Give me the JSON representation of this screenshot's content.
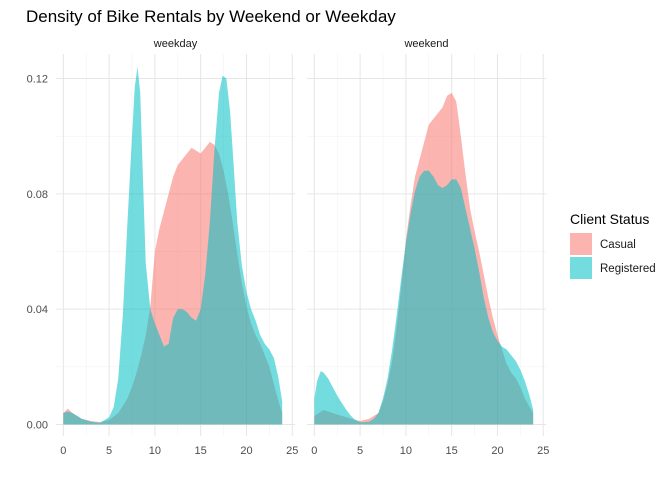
{
  "chart_data": {
    "type": "area",
    "title": "Density of Bike Rentals by Weekend or Weekday",
    "xlabel": "",
    "ylabel": "",
    "xlim": [
      -0.8,
      25.3
    ],
    "ylim": [
      -0.004,
      0.1285
    ],
    "x_ticks": [
      0,
      5,
      10,
      15,
      20,
      25
    ],
    "y_ticks": [
      0.0,
      0.04,
      0.08,
      0.12
    ],
    "y_tick_labels": [
      "0.00",
      "0.04",
      "0.08",
      "0.12"
    ],
    "grid": true,
    "legend": {
      "title": "Client Status",
      "position": "right",
      "entries": [
        {
          "name": "Casual",
          "color": "#F8766D"
        },
        {
          "name": "Registered",
          "color": "#00BFC4"
        }
      ]
    },
    "facets": [
      {
        "label": "weekday",
        "series": [
          {
            "name": "Casual",
            "color": "#F8766D",
            "x": [
              0,
              0.5,
              1,
              1.5,
              2,
              3,
              4,
              5,
              6,
              7,
              7.5,
              8,
              8.5,
              9,
              9.5,
              10,
              10.5,
              11,
              11.5,
              12,
              12.5,
              13,
              13.5,
              14,
              14.5,
              15,
              15.5,
              16,
              16.5,
              17,
              17.5,
              18,
              18.5,
              19,
              19.5,
              20,
              20.5,
              21,
              21.5,
              22,
              22.5,
              23,
              23.5,
              23.9
            ],
            "y": [
              0.004,
              0.0055,
              0.004,
              0.003,
              0.002,
              0.0012,
              0.0008,
              0.0015,
              0.004,
              0.009,
              0.013,
              0.018,
              0.024,
              0.031,
              0.041,
              0.06,
              0.068,
              0.074,
              0.08,
              0.086,
              0.09,
              0.092,
              0.094,
              0.096,
              0.095,
              0.094,
              0.096,
              0.098,
              0.097,
              0.094,
              0.088,
              0.08,
              0.07,
              0.059,
              0.049,
              0.041,
              0.035,
              0.031,
              0.028,
              0.024,
              0.02,
              0.014,
              0.008,
              0.004
            ]
          },
          {
            "name": "Registered",
            "color": "#00BFC4",
            "x": [
              0,
              0.5,
              1,
              1.5,
              2,
              3,
              4,
              5,
              5.5,
              6,
              6.5,
              7,
              7.5,
              7.8,
              8.1,
              8.4,
              8.7,
              9,
              9.5,
              10,
              10.5,
              11,
              11.5,
              12,
              12.5,
              13,
              13.5,
              14,
              14.5,
              15,
              15.5,
              16,
              16.5,
              17,
              17.4,
              17.8,
              18.2,
              18.6,
              19,
              19.5,
              20,
              20.5,
              21,
              21.5,
              22,
              22.5,
              23,
              23.5,
              23.9
            ],
            "y": [
              0.004,
              0.0045,
              0.004,
              0.003,
              0.002,
              0.001,
              0.0006,
              0.0025,
              0.006,
              0.016,
              0.038,
              0.07,
              0.1,
              0.117,
              0.124,
              0.115,
              0.085,
              0.056,
              0.04,
              0.035,
              0.031,
              0.027,
              0.028,
              0.037,
              0.04,
              0.04,
              0.039,
              0.037,
              0.036,
              0.04,
              0.052,
              0.07,
              0.095,
              0.115,
              0.121,
              0.12,
              0.109,
              0.09,
              0.07,
              0.055,
              0.046,
              0.04,
              0.036,
              0.031,
              0.028,
              0.026,
              0.023,
              0.016,
              0.008
            ]
          }
        ]
      },
      {
        "label": "weekend",
        "series": [
          {
            "name": "Casual",
            "color": "#F8766D",
            "x": [
              0,
              0.5,
              1,
              1.5,
              2,
              2.5,
              3,
              3.5,
              4,
              5,
              6,
              7,
              7.5,
              8,
              8.5,
              9,
              9.5,
              10,
              10.5,
              11,
              11.5,
              12,
              12.5,
              13,
              13.5,
              14,
              14.5,
              15,
              15.5,
              16,
              16.5,
              17,
              17.5,
              18,
              18.5,
              19,
              19.5,
              20,
              20.5,
              21,
              21.5,
              22,
              22.5,
              23,
              23.5,
              23.9
            ],
            "y": [
              0.003,
              0.004,
              0.005,
              0.0045,
              0.004,
              0.0035,
              0.003,
              0.0025,
              0.002,
              0.0012,
              0.002,
              0.004,
              0.008,
              0.014,
              0.022,
              0.034,
              0.048,
              0.064,
              0.076,
              0.086,
              0.092,
              0.098,
              0.104,
              0.106,
              0.108,
              0.11,
              0.114,
              0.115,
              0.112,
              0.1,
              0.087,
              0.075,
              0.067,
              0.06,
              0.052,
              0.044,
              0.037,
              0.031,
              0.026,
              0.021,
              0.018,
              0.016,
              0.013,
              0.009,
              0.006,
              0.004
            ]
          },
          {
            "name": "Registered",
            "color": "#00BFC4",
            "x": [
              0,
              0.3,
              0.7,
              1,
              1.5,
              2,
              2.5,
              3,
              3.5,
              4,
              4.5,
              5,
              5.5,
              6,
              6.5,
              7,
              7.5,
              8,
              8.5,
              9,
              9.5,
              10,
              10.5,
              11,
              11.5,
              12,
              12.5,
              13,
              13.5,
              14,
              14.5,
              15,
              15.5,
              16,
              16.5,
              17,
              17.5,
              18,
              18.5,
              19,
              19.5,
              20,
              20.5,
              21,
              21.5,
              22,
              22.5,
              23,
              23.5,
              23.9
            ],
            "y": [
              0.009,
              0.015,
              0.0185,
              0.018,
              0.016,
              0.013,
              0.01,
              0.0075,
              0.005,
              0.003,
              0.0015,
              0.0008,
              0.0008,
              0.001,
              0.002,
              0.004,
              0.009,
              0.016,
              0.026,
              0.038,
              0.051,
              0.063,
              0.073,
              0.081,
              0.086,
              0.088,
              0.088,
              0.086,
              0.083,
              0.082,
              0.083,
              0.085,
              0.085,
              0.082,
              0.075,
              0.068,
              0.061,
              0.053,
              0.044,
              0.037,
              0.032,
              0.029,
              0.027,
              0.026,
              0.024,
              0.022,
              0.019,
              0.015,
              0.01,
              0.005
            ]
          }
        ]
      }
    ]
  }
}
